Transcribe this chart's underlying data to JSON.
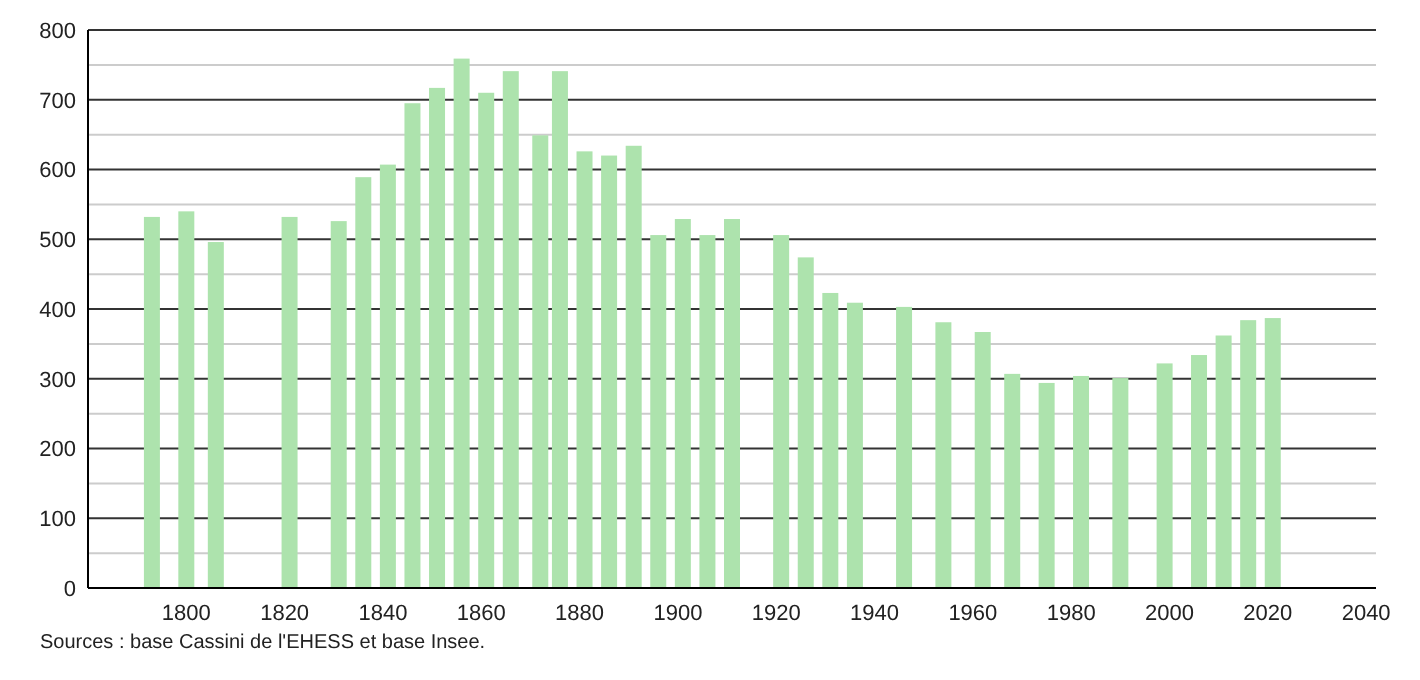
{
  "chart_data": {
    "type": "bar",
    "x": [
      1793,
      1800,
      1806,
      1821,
      1831,
      1836,
      1841,
      1846,
      1851,
      1856,
      1861,
      1866,
      1872,
      1876,
      1881,
      1886,
      1891,
      1896,
      1901,
      1906,
      1911,
      1921,
      1926,
      1931,
      1936,
      1946,
      1954,
      1962,
      1968,
      1975,
      1982,
      1990,
      1999,
      2006,
      2011,
      2016,
      2021
    ],
    "values": [
      532,
      540,
      496,
      532,
      526,
      589,
      607,
      695,
      717,
      759,
      710,
      741,
      649,
      741,
      626,
      620,
      634,
      506,
      529,
      506,
      529,
      506,
      474,
      423,
      409,
      403,
      381,
      367,
      307,
      294,
      304,
      301,
      322,
      334,
      362,
      384,
      387
    ],
    "color": "#ade3ad",
    "xlim": [
      1780,
      2042
    ],
    "xticks": [
      1800,
      1820,
      1840,
      1860,
      1880,
      1900,
      1920,
      1940,
      1960,
      1980,
      2000,
      2020,
      2040
    ],
    "ylim": [
      0,
      800
    ],
    "yticks": [
      0,
      {
        "value": 50,
        "label": null
      },
      100,
      {
        "value": 150,
        "label": null
      },
      200,
      {
        "value": 250,
        "label": null
      },
      300,
      {
        "value": 350,
        "label": null
      },
      400,
      {
        "value": 450,
        "label": null
      },
      500,
      {
        "value": 550,
        "label": null
      },
      600,
      {
        "value": 650,
        "label": null
      },
      700,
      {
        "value": 750,
        "label": null
      },
      800
    ],
    "grid": true,
    "annotations": [
      "Sources : base Cassini de l'EHESS et base Insee."
    ]
  }
}
